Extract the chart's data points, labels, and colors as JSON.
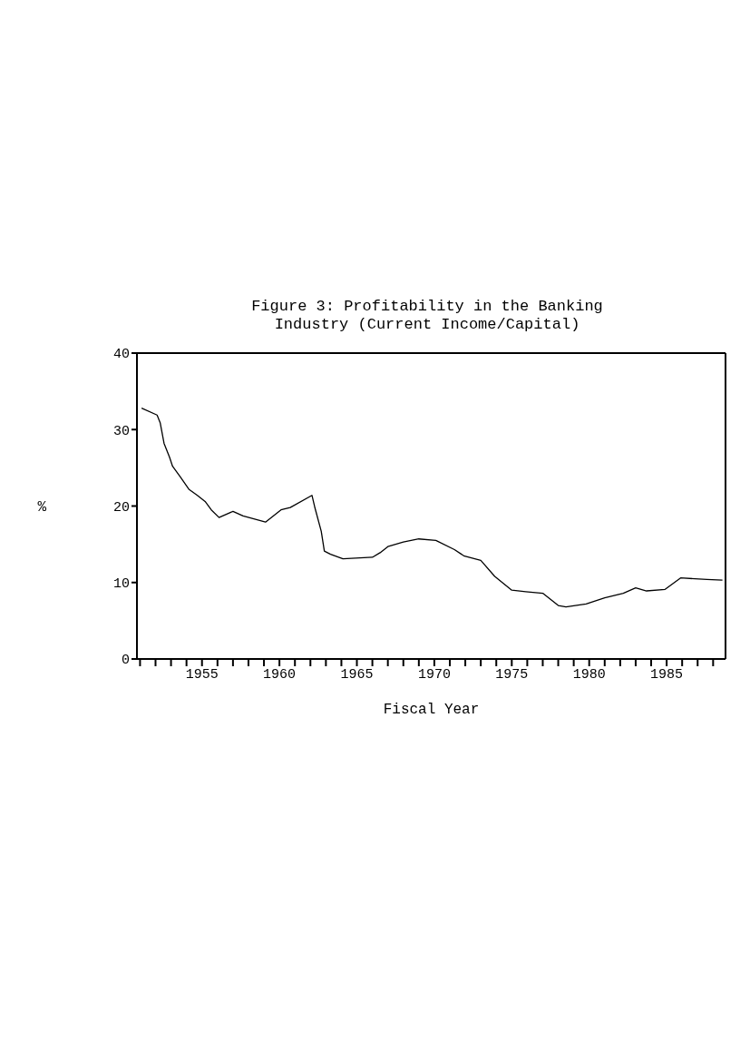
{
  "chart_data": {
    "type": "line",
    "title": "Figure 3: Profitability in the Banking Industry (Current Income/Capital)",
    "xlabel": "Fiscal Year",
    "ylabel": "%",
    "x": [
      1951.1,
      1952.1,
      1952.3,
      1952.55,
      1952.9,
      1953.1,
      1953.6,
      1954.15,
      1954.7,
      1955.2,
      1955.6,
      1956.1,
      1957.0,
      1957.65,
      1959.1,
      1960.1,
      1960.7,
      1962.1,
      1962.3,
      1962.7,
      1962.9,
      1963.3,
      1964.1,
      1966.0,
      1966.5,
      1967.0,
      1968.0,
      1969.0,
      1970.1,
      1971.3,
      1971.9,
      1973.0,
      1973.9,
      1975.0,
      1975.9,
      1977.0,
      1978.0,
      1978.5,
      1979.8,
      1981.0,
      1982.2,
      1983.0,
      1983.7,
      1984.9,
      1985.5,
      1985.9,
      1987.6,
      1988.6
    ],
    "series": [
      {
        "color": "#000000",
        "values": [
          32.8,
          31.9,
          30.9,
          28.2,
          26.4,
          25.2,
          23.8,
          22.2,
          21.4,
          20.6,
          19.5,
          18.5,
          19.3,
          18.7,
          17.9,
          19.5,
          19.8,
          21.4,
          19.7,
          16.7,
          14.1,
          13.7,
          13.1,
          13.3,
          13.9,
          14.7,
          15.3,
          15.7,
          15.5,
          14.3,
          13.5,
          12.9,
          10.8,
          9.0,
          8.8,
          8.6,
          7.0,
          6.8,
          7.2,
          8.0,
          8.6,
          9.3,
          8.9,
          9.1,
          10.0,
          10.6,
          10.4,
          10.3
        ]
      }
    ],
    "xlim": [
      1950.8,
      1988.8
    ],
    "xticks": [
      {
        "value": 1951,
        "label": null
      },
      {
        "value": 1952,
        "label": null
      },
      {
        "value": 1953,
        "label": null
      },
      {
        "value": 1954,
        "label": null
      },
      1955,
      {
        "value": 1956,
        "label": null
      },
      {
        "value": 1957,
        "label": null
      },
      {
        "value": 1958,
        "label": null
      },
      {
        "value": 1959,
        "label": null
      },
      1960,
      {
        "value": 1961,
        "label": null
      },
      {
        "value": 1962,
        "label": null
      },
      {
        "value": 1963,
        "label": null
      },
      {
        "value": 1964,
        "label": null
      },
      1965,
      {
        "value": 1966,
        "label": null
      },
      {
        "value": 1967,
        "label": null
      },
      {
        "value": 1968,
        "label": null
      },
      {
        "value": 1969,
        "label": null
      },
      1970,
      {
        "value": 1971,
        "label": null
      },
      {
        "value": 1972,
        "label": null
      },
      {
        "value": 1973,
        "label": null
      },
      {
        "value": 1974,
        "label": null
      },
      1975,
      {
        "value": 1976,
        "label": null
      },
      {
        "value": 1977,
        "label": null
      },
      {
        "value": 1978,
        "label": null
      },
      {
        "value": 1979,
        "label": null
      },
      1980,
      {
        "value": 1981,
        "label": null
      },
      {
        "value": 1982,
        "label": null
      },
      {
        "value": 1983,
        "label": null
      },
      {
        "value": 1984,
        "label": null
      },
      1985,
      {
        "value": 1986,
        "label": null
      },
      {
        "value": 1987,
        "label": null
      },
      {
        "value": 1988,
        "label": null
      }
    ],
    "ylim": [
      0,
      40
    ],
    "yticks": [
      0,
      10,
      20,
      30,
      40
    ],
    "grid": false,
    "legend": false,
    "marker": "none",
    "line_style": "solid"
  }
}
